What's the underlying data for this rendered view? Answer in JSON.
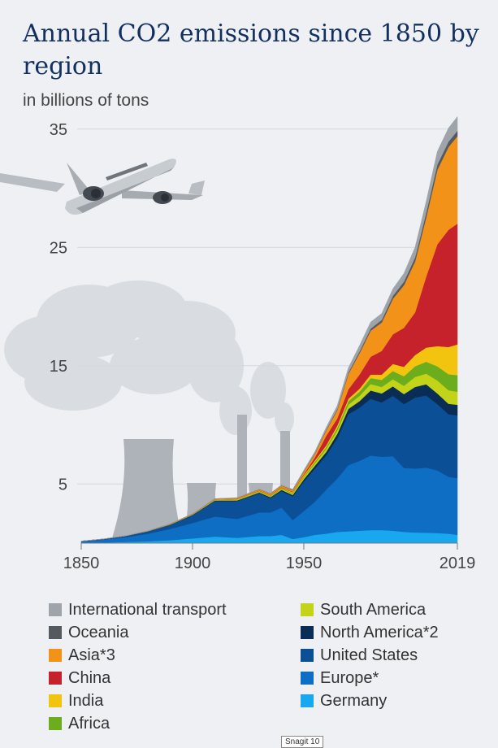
{
  "chart_data": {
    "type": "area",
    "stacked": true,
    "title": "Annual CO2 emissions since 1850 by region",
    "subtitle": "in billions of tons",
    "x_ticks": [
      "1850",
      "1900",
      "1950",
      "2019"
    ],
    "y_ticks": [
      "5",
      "15",
      "25",
      "35"
    ],
    "ylim": [
      0,
      36
    ],
    "xlim": [
      1850,
      2019
    ],
    "grid": "horizontal",
    "x": [
      1850,
      1860,
      1870,
      1880,
      1890,
      1900,
      1910,
      1920,
      1930,
      1935,
      1940,
      1945,
      1950,
      1955,
      1960,
      1965,
      1970,
      1975,
      1980,
      1985,
      1990,
      1995,
      2000,
      2005,
      2010,
      2015,
      2019
    ],
    "series": [
      {
        "name": "Germany",
        "color": "#19a7f0",
        "values": [
          0.0,
          0.05,
          0.1,
          0.15,
          0.25,
          0.4,
          0.55,
          0.45,
          0.6,
          0.6,
          0.7,
          0.35,
          0.5,
          0.7,
          0.8,
          0.95,
          1.0,
          1.05,
          1.1,
          1.1,
          1.05,
          0.95,
          0.9,
          0.88,
          0.85,
          0.8,
          0.7
        ]
      },
      {
        "name": "Europe*",
        "color": "#0d6ec4",
        "values": [
          0.15,
          0.25,
          0.4,
          0.65,
          0.95,
          1.3,
          1.7,
          1.6,
          2.0,
          2.0,
          2.3,
          1.6,
          2.2,
          2.8,
          3.7,
          4.5,
          5.6,
          5.9,
          6.3,
          6.2,
          6.3,
          5.4,
          5.4,
          5.5,
          5.3,
          4.8,
          4.8
        ]
      },
      {
        "name": "United States",
        "color": "#0b4f96",
        "values": [
          0.02,
          0.05,
          0.1,
          0.2,
          0.35,
          0.66,
          1.3,
          1.5,
          1.6,
          1.2,
          1.4,
          2.0,
          2.5,
          2.8,
          2.9,
          3.4,
          4.3,
          4.5,
          4.8,
          4.6,
          5.1,
          5.4,
          6.0,
          6.1,
          5.6,
          5.3,
          5.3
        ]
      },
      {
        "name": "North America*2",
        "color": "#0a2d55",
        "values": [
          0.0,
          0.0,
          0.01,
          0.01,
          0.02,
          0.03,
          0.05,
          0.06,
          0.08,
          0.08,
          0.1,
          0.12,
          0.2,
          0.25,
          0.3,
          0.38,
          0.45,
          0.55,
          0.7,
          0.75,
          0.8,
          0.85,
          0.9,
          0.95,
          0.9,
          0.88,
          0.9
        ]
      },
      {
        "name": "South America",
        "color": "#c3d317",
        "values": [
          0.0,
          0.0,
          0.0,
          0.01,
          0.01,
          0.02,
          0.03,
          0.04,
          0.05,
          0.06,
          0.07,
          0.1,
          0.15,
          0.2,
          0.25,
          0.3,
          0.35,
          0.45,
          0.55,
          0.55,
          0.6,
          0.7,
          0.85,
          0.9,
          1.1,
          1.15,
          1.1
        ]
      },
      {
        "name": "Africa",
        "color": "#6cad1e",
        "values": [
          0.0,
          0.0,
          0.0,
          0.0,
          0.01,
          0.01,
          0.02,
          0.03,
          0.04,
          0.05,
          0.06,
          0.07,
          0.1,
          0.13,
          0.15,
          0.2,
          0.3,
          0.35,
          0.5,
          0.6,
          0.7,
          0.8,
          0.9,
          1.0,
          1.2,
          1.35,
          1.4
        ]
      },
      {
        "name": "India",
        "color": "#f2c40f",
        "values": [
          0.0,
          0.0,
          0.0,
          0.01,
          0.01,
          0.02,
          0.03,
          0.04,
          0.05,
          0.05,
          0.06,
          0.07,
          0.1,
          0.12,
          0.15,
          0.2,
          0.2,
          0.25,
          0.3,
          0.45,
          0.6,
          0.8,
          0.95,
          1.2,
          1.7,
          2.3,
          2.6
        ]
      },
      {
        "name": "China",
        "color": "#c6222c",
        "values": [
          0.0,
          0.0,
          0.0,
          0.0,
          0.0,
          0.0,
          0.01,
          0.02,
          0.03,
          0.03,
          0.04,
          0.04,
          0.08,
          0.25,
          0.8,
          0.6,
          0.8,
          1.2,
          1.5,
          2.0,
          2.5,
          3.3,
          3.6,
          6.0,
          8.6,
          9.9,
          10.2
        ]
      },
      {
        "name": "Asia*3",
        "color": "#f39219",
        "values": [
          0.0,
          0.0,
          0.01,
          0.01,
          0.02,
          0.03,
          0.05,
          0.06,
          0.08,
          0.1,
          0.12,
          0.12,
          0.2,
          0.3,
          0.45,
          0.7,
          1.3,
          1.8,
          2.2,
          2.4,
          3.0,
          3.6,
          4.3,
          5.0,
          6.3,
          7.0,
          7.4
        ]
      },
      {
        "name": "Oceania",
        "color": "#555a60",
        "values": [
          0.0,
          0.0,
          0.0,
          0.0,
          0.01,
          0.01,
          0.01,
          0.02,
          0.02,
          0.02,
          0.03,
          0.03,
          0.04,
          0.05,
          0.07,
          0.09,
          0.12,
          0.15,
          0.18,
          0.22,
          0.25,
          0.3,
          0.35,
          0.4,
          0.45,
          0.45,
          0.45
        ]
      },
      {
        "name": "International transport",
        "color": "#9ea4aa",
        "values": [
          0.0,
          0.0,
          0.0,
          0.0,
          0.0,
          0.0,
          0.01,
          0.02,
          0.03,
          0.04,
          0.05,
          0.06,
          0.1,
          0.15,
          0.2,
          0.3,
          0.4,
          0.5,
          0.55,
          0.55,
          0.6,
          0.7,
          0.85,
          0.95,
          1.1,
          1.15,
          1.2
        ]
      }
    ]
  },
  "legend": {
    "left": [
      {
        "label": "International transport",
        "color": "#9ea4aa"
      },
      {
        "label": "Oceania",
        "color": "#555a60"
      },
      {
        "label": "Asia*3",
        "color": "#f39219"
      },
      {
        "label": "China",
        "color": "#c6222c"
      },
      {
        "label": "India",
        "color": "#f2c40f"
      },
      {
        "label": "Africa",
        "color": "#6cad1e"
      }
    ],
    "right": [
      {
        "label": "South America",
        "color": "#c3d317"
      },
      {
        "label": "North America*2",
        "color": "#0a2d55"
      },
      {
        "label": "United States",
        "color": "#0b4f96"
      },
      {
        "label": "Europe*",
        "color": "#0d6ec4"
      },
      {
        "label": "Germany",
        "color": "#19a7f0"
      }
    ]
  },
  "decorations": {
    "airplane": "airplane-icon",
    "factory": "factory-icon",
    "smoke": "smoke-icon"
  },
  "watermark": "Snagit 10"
}
